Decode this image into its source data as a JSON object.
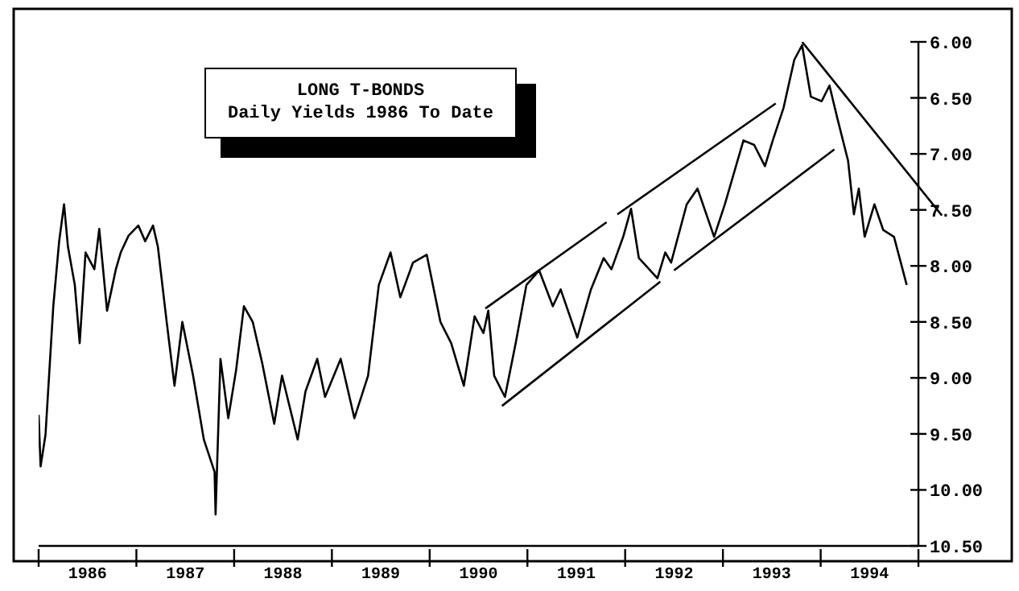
{
  "chart_data": {
    "type": "line",
    "title": "LONG T-BONDS",
    "subtitle": "Daily Yields 1986 To Date",
    "xlim": [
      1986,
      1995.93
    ],
    "ylim": [
      10.5,
      6.0
    ],
    "xticks": [
      {
        "value": 1986,
        "label": null
      },
      {
        "value": 1986.5,
        "label": "1986"
      },
      {
        "value": 1987,
        "label": null
      },
      {
        "value": 1987.5,
        "label": "1987"
      },
      {
        "value": 1988,
        "label": null
      },
      {
        "value": 1988.5,
        "label": "1988"
      },
      {
        "value": 1989,
        "label": null
      },
      {
        "value": 1989.5,
        "label": "1989"
      },
      {
        "value": 1990,
        "label": null
      },
      {
        "value": 1990.5,
        "label": "1990"
      },
      {
        "value": 1991,
        "label": null
      },
      {
        "value": 1991.5,
        "label": "1991"
      },
      {
        "value": 1992,
        "label": null
      },
      {
        "value": 1992.5,
        "label": "1992"
      },
      {
        "value": 1993,
        "label": null
      },
      {
        "value": 1993.5,
        "label": "1993"
      },
      {
        "value": 1994,
        "label": null
      },
      {
        "value": 1994.5,
        "label": "1994"
      },
      {
        "value": 1995,
        "label": null
      }
    ],
    "yticks": [
      {
        "value": 6,
        "label": "6.00"
      },
      {
        "value": 6.5,
        "label": "6.50"
      },
      {
        "value": 7,
        "label": "7.00"
      },
      {
        "value": 7.5,
        "label": "7.50"
      },
      {
        "value": 8,
        "label": "8.00"
      },
      {
        "value": 8.5,
        "label": "8.50"
      },
      {
        "value": 9,
        "label": "9.00"
      },
      {
        "value": 9.5,
        "label": "9.50"
      },
      {
        "value": 10,
        "label": "10.00"
      },
      {
        "value": 10.5,
        "label": "10.50"
      }
    ],
    "grid": false,
    "legend": false,
    "marker": "none",
    "line_style": "solid",
    "series": [
      {
        "color": "#000000",
        "x": [
          1986.0,
          1986.02,
          1986.07,
          1986.15,
          1986.21,
          1986.26,
          1986.3,
          1986.37,
          1986.42,
          1986.48,
          1986.57,
          1986.62,
          1986.7,
          1986.79,
          1986.84,
          1986.92,
          1987.02,
          1987.09,
          1987.17,
          1987.22,
          1987.31,
          1987.39,
          1987.47,
          1987.58,
          1987.69,
          1987.8,
          1987.81,
          1987.86,
          1987.94,
          1988.02,
          1988.1,
          1988.19,
          1988.29,
          1988.41,
          1988.49,
          1988.65,
          1988.73,
          1988.85,
          1988.93,
          1989.09,
          1989.23,
          1989.37,
          1989.48,
          1989.6,
          1989.7,
          1989.83,
          1989.97,
          1990.11,
          1990.22,
          1990.35,
          1990.46,
          1990.55,
          1990.6,
          1990.66,
          1990.77,
          1990.88,
          1990.99,
          1991.12,
          1991.26,
          1991.34,
          1991.51,
          1991.65,
          1991.78,
          1991.86,
          1991.98,
          1992.06,
          1992.14,
          1992.33,
          1992.41,
          1992.47,
          1992.63,
          1992.74,
          1992.91,
          1993.02,
          1993.21,
          1993.32,
          1993.43,
          1993.51,
          1993.62,
          1993.73,
          1993.81,
          1993.9,
          1994.01,
          1994.09,
          1994.17,
          1994.28,
          1994.34,
          1994.39,
          1994.45,
          1994.55,
          1994.64,
          1994.75,
          1994.88
        ],
        "values": [
          9.33,
          9.79,
          9.51,
          8.36,
          7.78,
          7.45,
          7.83,
          8.17,
          8.69,
          7.88,
          8.03,
          7.67,
          8.4,
          8.03,
          7.88,
          7.73,
          7.64,
          7.78,
          7.64,
          7.83,
          8.5,
          9.07,
          8.5,
          8.98,
          9.55,
          9.84,
          10.22,
          8.83,
          9.36,
          8.93,
          8.36,
          8.5,
          8.88,
          9.41,
          8.98,
          9.55,
          9.12,
          8.83,
          9.17,
          8.83,
          9.36,
          8.98,
          8.17,
          7.88,
          8.28,
          7.97,
          7.9,
          8.5,
          8.69,
          9.07,
          8.45,
          8.6,
          8.4,
          8.98,
          9.17,
          8.69,
          8.17,
          8.04,
          8.36,
          8.21,
          8.64,
          8.21,
          7.93,
          8.03,
          7.74,
          7.49,
          7.93,
          8.11,
          7.88,
          7.97,
          7.45,
          7.31,
          7.74,
          7.45,
          6.88,
          6.92,
          7.11,
          6.88,
          6.59,
          6.16,
          6.03,
          6.49,
          6.53,
          6.39,
          6.68,
          7.06,
          7.54,
          7.31,
          7.74,
          7.45,
          7.68,
          7.74,
          8.17
        ]
      },
      {
        "type": "line",
        "color": "#000000",
        "x": [
          1990.57,
          1991.81
        ],
        "values": [
          8.38,
          7.61
        ]
      },
      {
        "type": "line",
        "color": "#000000",
        "x": [
          1991.92,
          1993.54
        ],
        "values": [
          7.54,
          6.55
        ]
      },
      {
        "type": "line",
        "color": "#000000",
        "x": [
          1990.74,
          1992.36
        ],
        "values": [
          9.25,
          8.14
        ]
      },
      {
        "type": "line",
        "color": "#000000",
        "x": [
          1992.5,
          1994.14
        ],
        "values": [
          8.04,
          6.96
        ]
      },
      {
        "type": "line",
        "color": "#000000",
        "x": [
          1993.81,
          1995.24
        ],
        "values": [
          6.0,
          7.55
        ]
      }
    ]
  }
}
